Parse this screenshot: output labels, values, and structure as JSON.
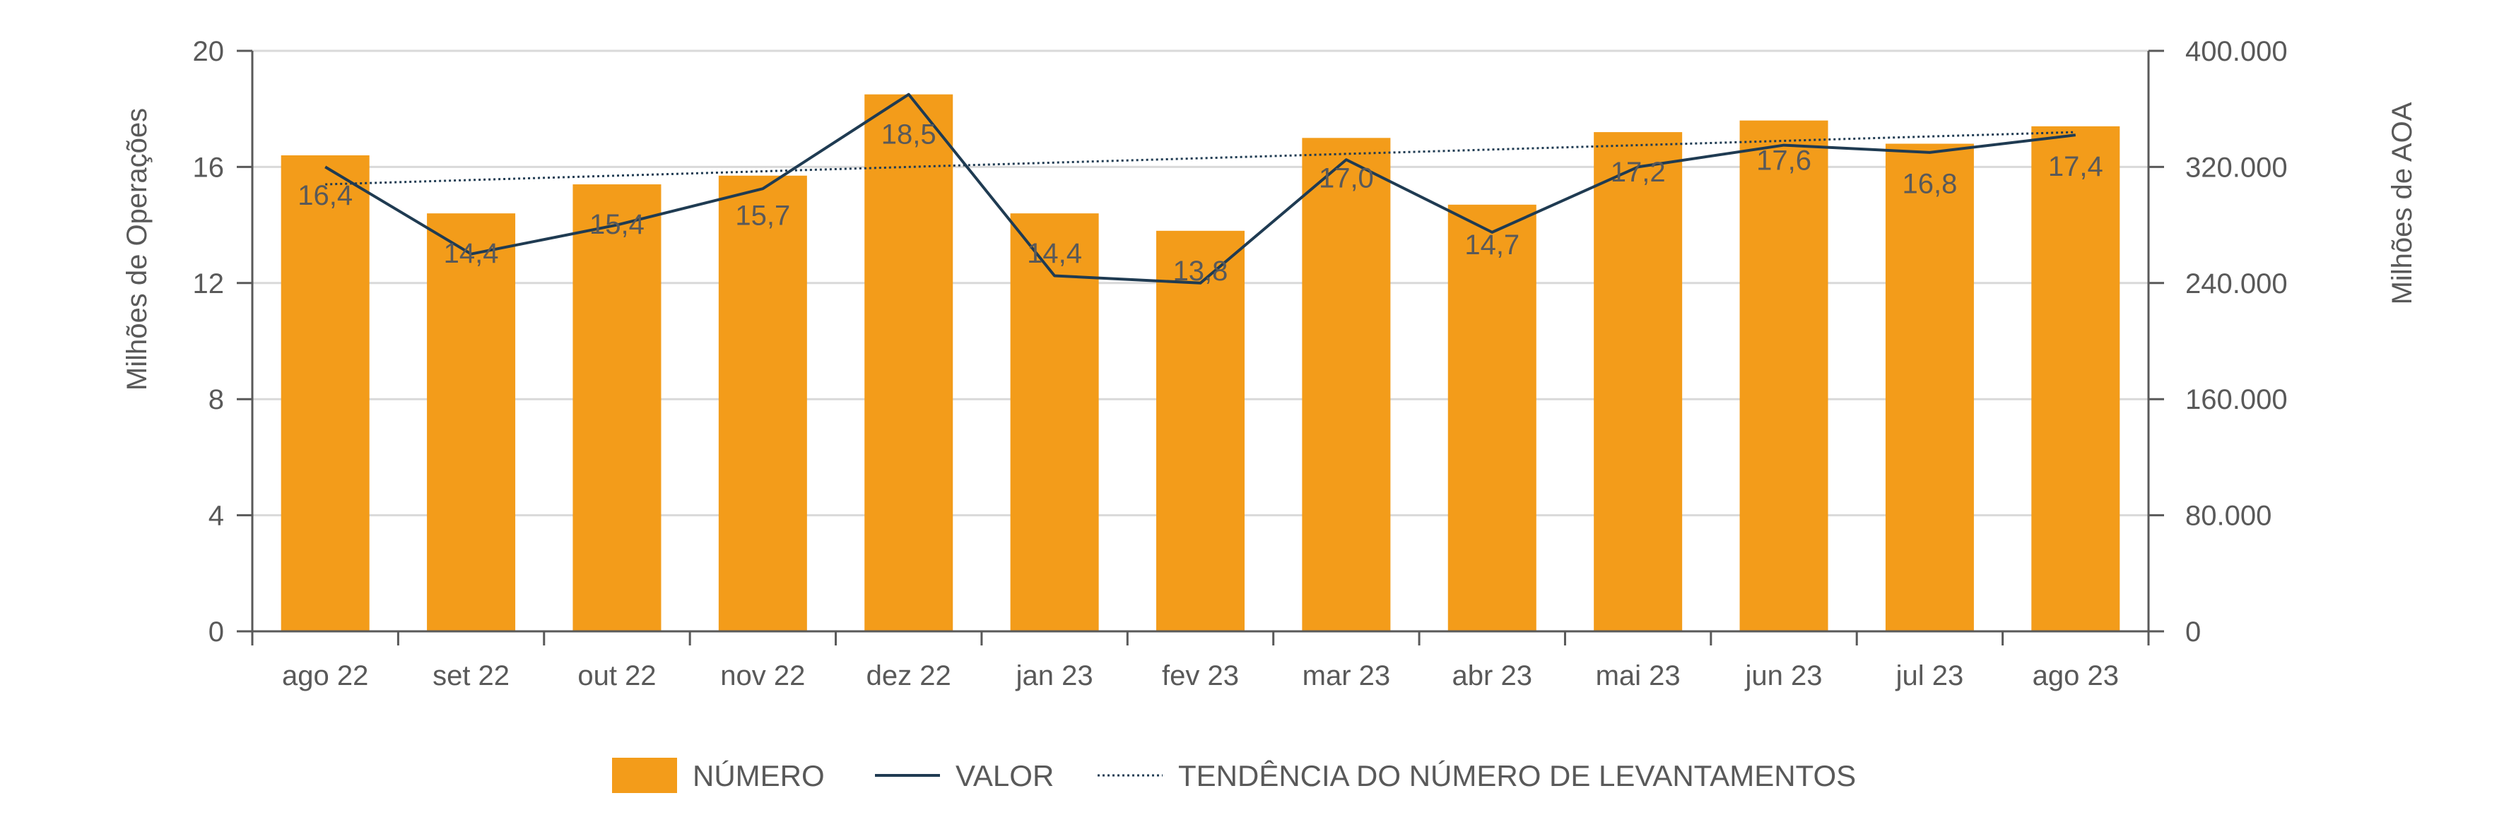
{
  "chart_data": {
    "type": "bar",
    "categories": [
      "ago 22",
      "set 22",
      "out 22",
      "nov 22",
      "dez 22",
      "jan 23",
      "fev 23",
      "mar 23",
      "abr 23",
      "mai 23",
      "jun 23",
      "jul 23",
      "ago 23"
    ],
    "series": [
      {
        "name": "NÚMERO",
        "type": "bar",
        "axis": "left",
        "color": "#F39C1A",
        "values": [
          16.4,
          14.4,
          15.4,
          15.7,
          18.5,
          14.4,
          13.8,
          17.0,
          14.7,
          17.2,
          17.6,
          16.8,
          17.4
        ],
        "data_labels": [
          "16,4",
          "14,4",
          "15,4",
          "15,7",
          "18,5",
          "14,4",
          "13,8",
          "17,0",
          "14,7",
          "17,2",
          "17,6",
          "16,8",
          "17,4"
        ]
      },
      {
        "name": "VALOR",
        "type": "line",
        "axis": "right",
        "color": "#1F3B52",
        "values": [
          320000,
          260000,
          280000,
          305000,
          370000,
          245000,
          240000,
          325000,
          275000,
          320000,
          335000,
          330000,
          342000
        ]
      },
      {
        "name": "TENDÊNCIA DO NÚMERO DE LEVANTAMENTOS",
        "type": "trendline",
        "axis": "left",
        "color": "#1F3B52",
        "style": "dotted",
        "values": [
          15.4,
          15.55,
          15.7,
          15.85,
          16.0,
          16.15,
          16.3,
          16.45,
          16.6,
          16.75,
          16.9,
          17.05,
          17.2
        ]
      }
    ],
    "y_left": {
      "label": "Milhões de Operações",
      "ylim": [
        0,
        20
      ],
      "ticks": [
        0,
        4,
        8,
        12,
        16,
        20
      ],
      "tick_labels": [
        "0",
        "4",
        "8",
        "12",
        "16",
        "20"
      ]
    },
    "y_right": {
      "label": "Milhões de AOA",
      "ylim": [
        0,
        400000
      ],
      "ticks": [
        0,
        80000,
        160000,
        240000,
        320000,
        400000
      ],
      "tick_labels": [
        "0",
        "80.000",
        "160.000",
        "240.000",
        "320.000",
        "400.000"
      ]
    },
    "grid": true,
    "legend_position": "bottom",
    "colors": {
      "grid": "#D9D9D9",
      "axis": "#595959"
    }
  }
}
